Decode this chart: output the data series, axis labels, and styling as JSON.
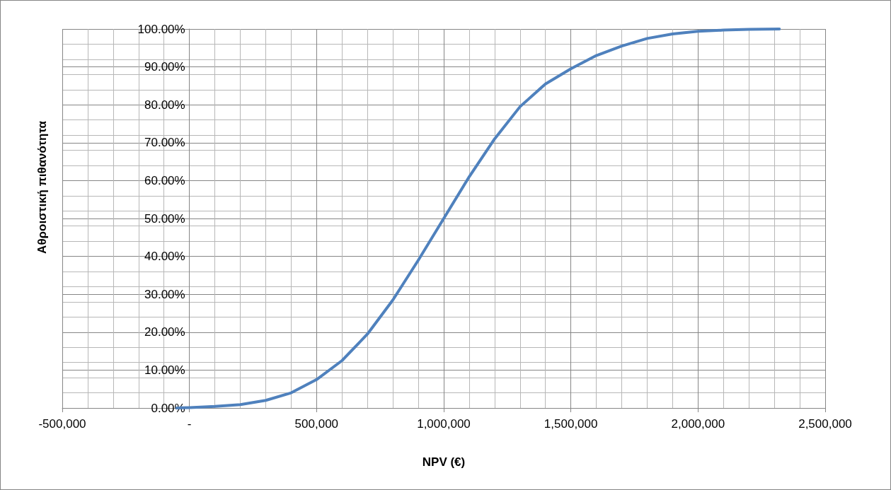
{
  "chart_data": {
    "type": "line",
    "xlabel": "NPV (€)",
    "ylabel": "Αθροιστική πιθανότητα",
    "x": [
      -50000,
      0,
      100000,
      200000,
      300000,
      400000,
      500000,
      600000,
      700000,
      800000,
      900000,
      1000000,
      1100000,
      1200000,
      1300000,
      1400000,
      1500000,
      1600000,
      1700000,
      1800000,
      1900000,
      2000000,
      2100000,
      2200000,
      2320000
    ],
    "series": [
      {
        "color": "#4f81bd",
        "values": [
          0,
          0.1,
          0.4,
          0.9,
          2.0,
          4.0,
          7.5,
          12.5,
          19.5,
          28.5,
          39,
          50,
          61,
          71,
          79.5,
          85.5,
          89.5,
          93,
          95.5,
          97.5,
          98.7,
          99.4,
          99.7,
          99.9,
          100
        ]
      }
    ],
    "xlim": [
      -500000,
      2500000
    ],
    "xticks": [
      {
        "value": -500000,
        "label": "-500,000"
      },
      {
        "value": 0,
        "label": "-"
      },
      {
        "value": 500000,
        "label": "500,000"
      },
      {
        "value": 1000000,
        "label": "1,000,000"
      },
      {
        "value": 1500000,
        "label": "1,500,000"
      },
      {
        "value": 2000000,
        "label": "2,000,000"
      },
      {
        "value": 2500000,
        "label": "2,500,000"
      }
    ],
    "ylim": [
      0,
      100
    ],
    "yticks": [
      {
        "value": 0,
        "label": "0.00%"
      },
      {
        "value": 10,
        "label": "10.00%"
      },
      {
        "value": 20,
        "label": "20.00%"
      },
      {
        "value": 30,
        "label": "30.00%"
      },
      {
        "value": 40,
        "label": "40.00%"
      },
      {
        "value": 50,
        "label": "50.00%"
      },
      {
        "value": 60,
        "label": "60.00%"
      },
      {
        "value": 70,
        "label": "70.00%"
      },
      {
        "value": 80,
        "label": "80.00%"
      },
      {
        "value": 90,
        "label": "90.00%"
      },
      {
        "value": 100,
        "label": "100.00%"
      }
    ],
    "grid": true,
    "marker": "none",
    "line_style": "solid"
  }
}
